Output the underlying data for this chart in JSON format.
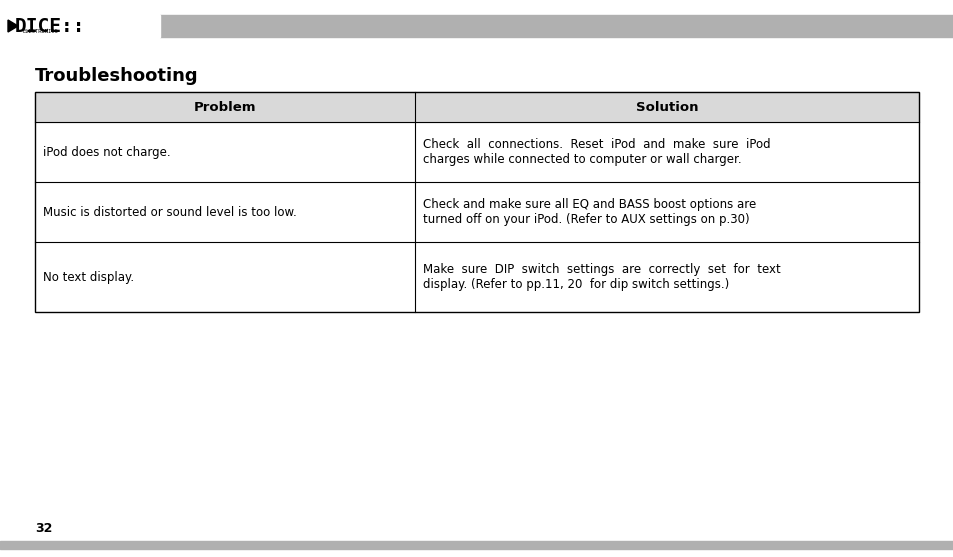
{
  "title": "Troubleshooting",
  "title_fontsize": 13,
  "title_bold": true,
  "header_problem": "Problem",
  "header_solution": "Solution",
  "rows": [
    {
      "problem": "iPod does not charge.",
      "solution": "Check  all  connections.  Reset  iPod  and  make  sure  iPod\ncharges while connected to computer or wall charger."
    },
    {
      "problem": "Music is distorted or sound level is too low.",
      "solution": "Check and make sure all EQ and BASS boost options are\nturned off on your iPod. (Refer to AUX settings on p.30)"
    },
    {
      "problem": "No text display.",
      "solution": "Make  sure  DIP  switch  settings  are  correctly  set  for  text\ndisplay. (Refer to pp.11, 20  for dip switch settings.)"
    }
  ],
  "page_number": "32",
  "bg_color": "#ffffff",
  "header_bg": "#d9d9d9",
  "table_border_color": "#000000",
  "text_color": "#000000",
  "logo_bar_color": "#b0b0b0",
  "bottom_bar_color": "#b0b0b0",
  "font_size": 8.5,
  "header_font_size": 9.5,
  "col_split": 0.43
}
